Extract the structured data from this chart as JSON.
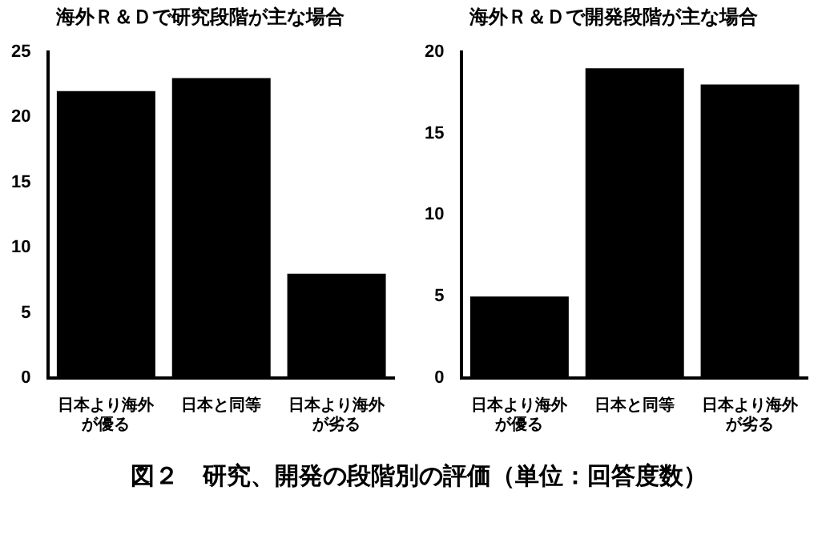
{
  "chart_data": [
    {
      "type": "bar",
      "title": "海外Ｒ＆Ｄで研究段階が主な場合",
      "categories": [
        "日本より海外が優る",
        "日本と同等",
        "日本より海外が劣る"
      ],
      "values": [
        22,
        23,
        8
      ],
      "color": "#000000",
      "ylim": [
        0,
        25
      ],
      "yticks": [
        0,
        5,
        10,
        15,
        20,
        25
      ],
      "grid": false,
      "legend": false
    },
    {
      "type": "bar",
      "title": "海外Ｒ＆Ｄで開発段階が主な場合",
      "categories": [
        "日本より海外が優る",
        "日本と同等",
        "日本より海外が劣る"
      ],
      "values": [
        5,
        19,
        18
      ],
      "color": "#000000",
      "ylim": [
        0,
        20
      ],
      "yticks": [
        0,
        5,
        10,
        15,
        20
      ],
      "grid": false,
      "legend": false,
      "annotations": [
        "図２　研究、開発の段階別の評価（単位：回答度数）"
      ]
    }
  ]
}
